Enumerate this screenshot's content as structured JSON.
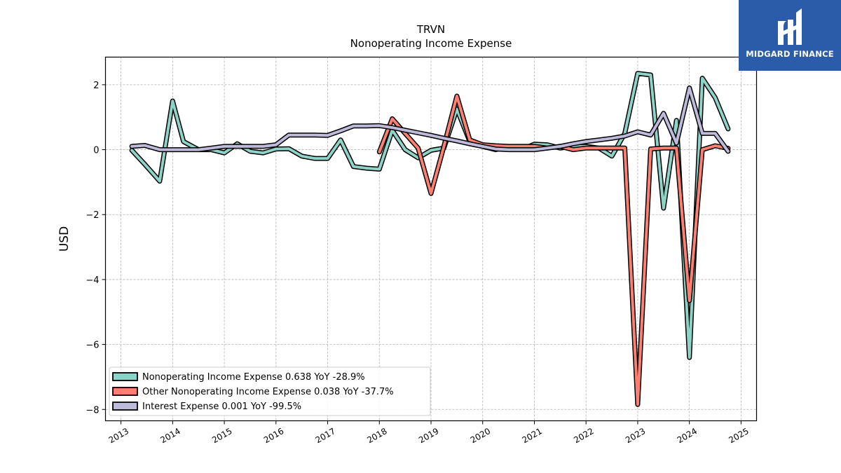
{
  "chart_data": {
    "type": "line",
    "title": "TRVN",
    "subtitle": "Nonoperating Income Expense",
    "ylabel": "USD",
    "xlabel": "",
    "xlim": [
      2012.7,
      2025.3
    ],
    "ylim": [
      -8.35,
      2.85
    ],
    "yticks": [
      2,
      0,
      -2,
      -4,
      -6,
      -8
    ],
    "ytick_labels": [
      "2",
      "0",
      "−2",
      "−4",
      "−6",
      "−8"
    ],
    "xticks": [
      2013,
      2014,
      2015,
      2016,
      2017,
      2018,
      2019,
      2020,
      2021,
      2022,
      2023,
      2024,
      2025
    ],
    "xtick_labels": [
      "2013",
      "2014",
      "2015",
      "2016",
      "2017",
      "2018",
      "2019",
      "2020",
      "2021",
      "2022",
      "2023",
      "2024",
      "2025"
    ],
    "grid": true,
    "legend_position": "lower-left",
    "series": [
      {
        "name": "Nonoperating Income Expense",
        "legend_label": "Nonoperating Income Expense  0.638 YoY -28.9%",
        "color": "#8dd3c7",
        "points": [
          [
            2013.21,
            -0.02
          ],
          [
            2013.46,
            -0.45
          ],
          [
            2013.75,
            -0.97
          ],
          [
            2014.0,
            1.5
          ],
          [
            2014.21,
            0.25
          ],
          [
            2014.5,
            0.0
          ],
          [
            2014.75,
            0.0
          ],
          [
            2015.0,
            -0.1
          ],
          [
            2015.25,
            0.18
          ],
          [
            2015.5,
            -0.05
          ],
          [
            2015.75,
            -0.1
          ],
          [
            2016.0,
            0.02
          ],
          [
            2016.25,
            0.03
          ],
          [
            2016.5,
            -0.2
          ],
          [
            2016.75,
            -0.27
          ],
          [
            2017.0,
            -0.27
          ],
          [
            2017.25,
            0.3
          ],
          [
            2017.5,
            -0.52
          ],
          [
            2017.75,
            -0.57
          ],
          [
            2018.0,
            -0.6
          ],
          [
            2018.25,
            0.6
          ],
          [
            2018.5,
            0.0
          ],
          [
            2018.75,
            -0.25
          ],
          [
            2019.0,
            -0.02
          ],
          [
            2019.25,
            0.05
          ],
          [
            2019.5,
            1.25
          ],
          [
            2019.75,
            0.25
          ],
          [
            2020.0,
            0.1
          ],
          [
            2020.25,
            0.0
          ],
          [
            2020.5,
            0.1
          ],
          [
            2020.75,
            0.0
          ],
          [
            2021.0,
            0.17
          ],
          [
            2021.25,
            0.15
          ],
          [
            2021.5,
            0.05
          ],
          [
            2021.75,
            0.1
          ],
          [
            2022.0,
            0.1
          ],
          [
            2022.25,
            0.05
          ],
          [
            2022.5,
            -0.2
          ],
          [
            2022.75,
            0.5
          ],
          [
            2023.0,
            2.35
          ],
          [
            2023.25,
            2.3
          ],
          [
            2023.5,
            -1.8
          ],
          [
            2023.75,
            0.9
          ],
          [
            2024.0,
            -6.4
          ],
          [
            2024.25,
            2.2
          ],
          [
            2024.5,
            1.6
          ],
          [
            2024.75,
            0.64
          ]
        ]
      },
      {
        "name": "Other Nonoperating Income Expense",
        "legend_label": "Other Nonoperating Income Expense  0.038 YoY -37.7%",
        "color": "#fb8072",
        "points": [
          [
            2018.0,
            -0.07
          ],
          [
            2018.25,
            0.95
          ],
          [
            2018.5,
            0.5
          ],
          [
            2018.75,
            0.05
          ],
          [
            2019.0,
            -1.35
          ],
          [
            2019.25,
            0.1
          ],
          [
            2019.5,
            1.65
          ],
          [
            2019.75,
            0.3
          ],
          [
            2020.0,
            0.15
          ],
          [
            2020.25,
            0.12
          ],
          [
            2020.5,
            0.1
          ],
          [
            2020.75,
            0.1
          ],
          [
            2021.0,
            0.1
          ],
          [
            2021.25,
            0.05
          ],
          [
            2021.5,
            0.1
          ],
          [
            2021.75,
            0.0
          ],
          [
            2022.0,
            0.05
          ],
          [
            2022.25,
            0.05
          ],
          [
            2022.5,
            0.05
          ],
          [
            2022.75,
            0.05
          ],
          [
            2023.0,
            -7.85
          ],
          [
            2023.25,
            0.02
          ],
          [
            2023.5,
            0.05
          ],
          [
            2023.75,
            0.05
          ],
          [
            2024.0,
            -4.65
          ],
          [
            2024.25,
            0.0
          ],
          [
            2024.5,
            0.12
          ],
          [
            2024.75,
            0.04
          ]
        ]
      },
      {
        "name": "Interest Expense",
        "legend_label": "Interest Expense  0.001 YoY -99.5%",
        "color": "#bebada",
        "points": [
          [
            2013.21,
            0.1
          ],
          [
            2013.46,
            0.13
          ],
          [
            2013.75,
            0.0
          ],
          [
            2014.0,
            0.0
          ],
          [
            2014.5,
            0.0
          ],
          [
            2014.75,
            0.05
          ],
          [
            2015.0,
            0.1
          ],
          [
            2015.25,
            0.1
          ],
          [
            2015.5,
            0.1
          ],
          [
            2015.75,
            0.1
          ],
          [
            2016.0,
            0.15
          ],
          [
            2016.25,
            0.45
          ],
          [
            2016.5,
            0.45
          ],
          [
            2016.75,
            0.45
          ],
          [
            2017.0,
            0.44
          ],
          [
            2017.25,
            0.58
          ],
          [
            2017.5,
            0.73
          ],
          [
            2017.75,
            0.73
          ],
          [
            2018.0,
            0.74
          ],
          [
            2018.25,
            0.68
          ],
          [
            2018.5,
            0.6
          ],
          [
            2018.75,
            0.52
          ],
          [
            2019.0,
            0.44
          ],
          [
            2019.25,
            0.35
          ],
          [
            2019.5,
            0.27
          ],
          [
            2019.75,
            0.18
          ],
          [
            2020.0,
            0.1
          ],
          [
            2020.25,
            0.02
          ],
          [
            2020.5,
            0.0
          ],
          [
            2020.75,
            0.0
          ],
          [
            2021.0,
            0.0
          ],
          [
            2021.25,
            0.05
          ],
          [
            2021.5,
            0.1
          ],
          [
            2021.75,
            0.18
          ],
          [
            2022.0,
            0.25
          ],
          [
            2022.25,
            0.3
          ],
          [
            2022.5,
            0.35
          ],
          [
            2022.75,
            0.42
          ],
          [
            2023.0,
            0.55
          ],
          [
            2023.25,
            0.45
          ],
          [
            2023.5,
            1.12
          ],
          [
            2023.75,
            0.2
          ],
          [
            2024.0,
            1.9
          ],
          [
            2024.25,
            0.5
          ],
          [
            2024.5,
            0.5
          ],
          [
            2024.75,
            -0.05
          ]
        ]
      }
    ]
  },
  "logo": {
    "name": "MIDGARD FINANCE",
    "background": "#2a5caa"
  }
}
